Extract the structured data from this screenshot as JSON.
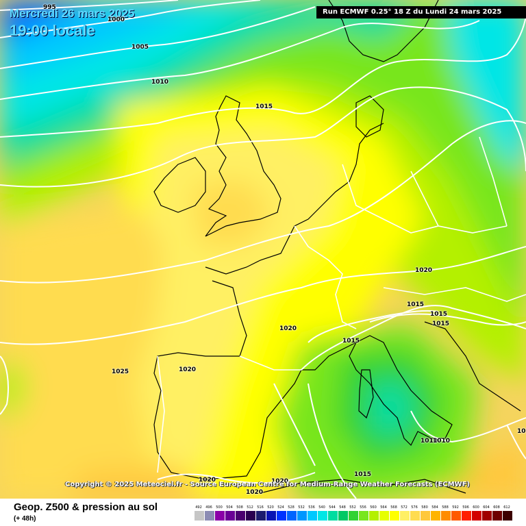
{
  "header": {
    "date": "Mercredi 26 mars 2025",
    "time": "19:00 locale",
    "run": "Run ECMWF 0.25° 18 Z du Lundi 24 mars 2025"
  },
  "copyright": "Copyright © 2025 Meteociel.fr - Source European Centre for Medium-Range Weather Forecasts (ECMWF)",
  "isobar_labels": [
    "995",
    "1000",
    "1005",
    "1010",
    "1015",
    "1020",
    "1020",
    "1020",
    "1025",
    "1020",
    "1015",
    "1015",
    "1015",
    "1015",
    "1015",
    "1010",
    "1010",
    "1020",
    "1020",
    "1020",
    "1015"
  ],
  "footer": {
    "title": "Geop. Z500 & pression au sol",
    "subtitle": "(+ 48h)"
  },
  "legend": {
    "values": [
      "492",
      "496",
      "500",
      "504",
      "508",
      "512",
      "516",
      "520",
      "524",
      "528",
      "532",
      "536",
      "540",
      "544",
      "548",
      "552",
      "556",
      "560",
      "564",
      "568",
      "572",
      "576",
      "580",
      "584",
      "588",
      "592",
      "596",
      "600",
      "604",
      "608",
      "612"
    ],
    "colors": [
      "#c6c6c6",
      "#8c8cb4",
      "#8a00a8",
      "#6a0096",
      "#4a0070",
      "#2a0050",
      "#1c1c6e",
      "#0a14b4",
      "#0032ff",
      "#0064ff",
      "#0096ff",
      "#00c8ff",
      "#00e6e6",
      "#00dca0",
      "#00c864",
      "#32d232",
      "#78e61e",
      "#b4f000",
      "#e6ff00",
      "#ffff00",
      "#fff064",
      "#ffdc50",
      "#ffc83c",
      "#ffb400",
      "#ff8c00",
      "#ff5a00",
      "#ff1e00",
      "#d20000",
      "#a00000",
      "#6e0000",
      "#3c0000"
    ]
  },
  "colors": {
    "isobar": "#ffffff",
    "coastline": "#000000",
    "border": "#ffffff"
  }
}
